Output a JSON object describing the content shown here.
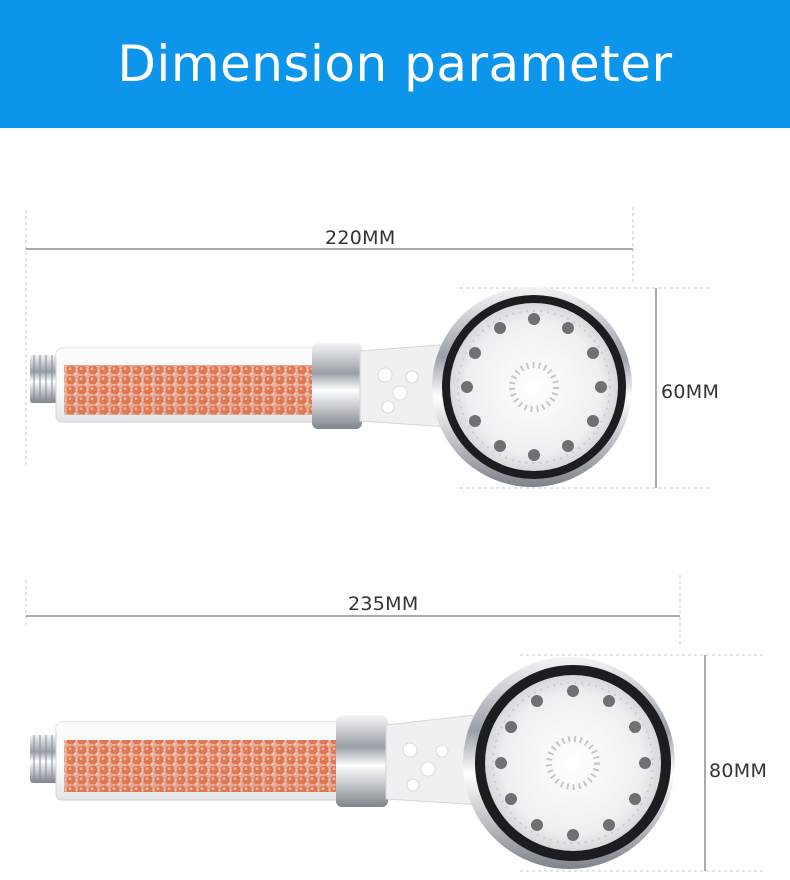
{
  "banner": {
    "title": "Dimension parameter",
    "color": "#0d95ec"
  },
  "products": [
    {
      "length_label": "220MM",
      "head_label": "60MM"
    },
    {
      "length_label": "235MM",
      "head_label": "80MM"
    }
  ],
  "colors": {
    "beads": "#e07a55",
    "chrome": "#c7cbd0",
    "dimension_line": "#555555",
    "guide_line": "#bbbbbb"
  }
}
